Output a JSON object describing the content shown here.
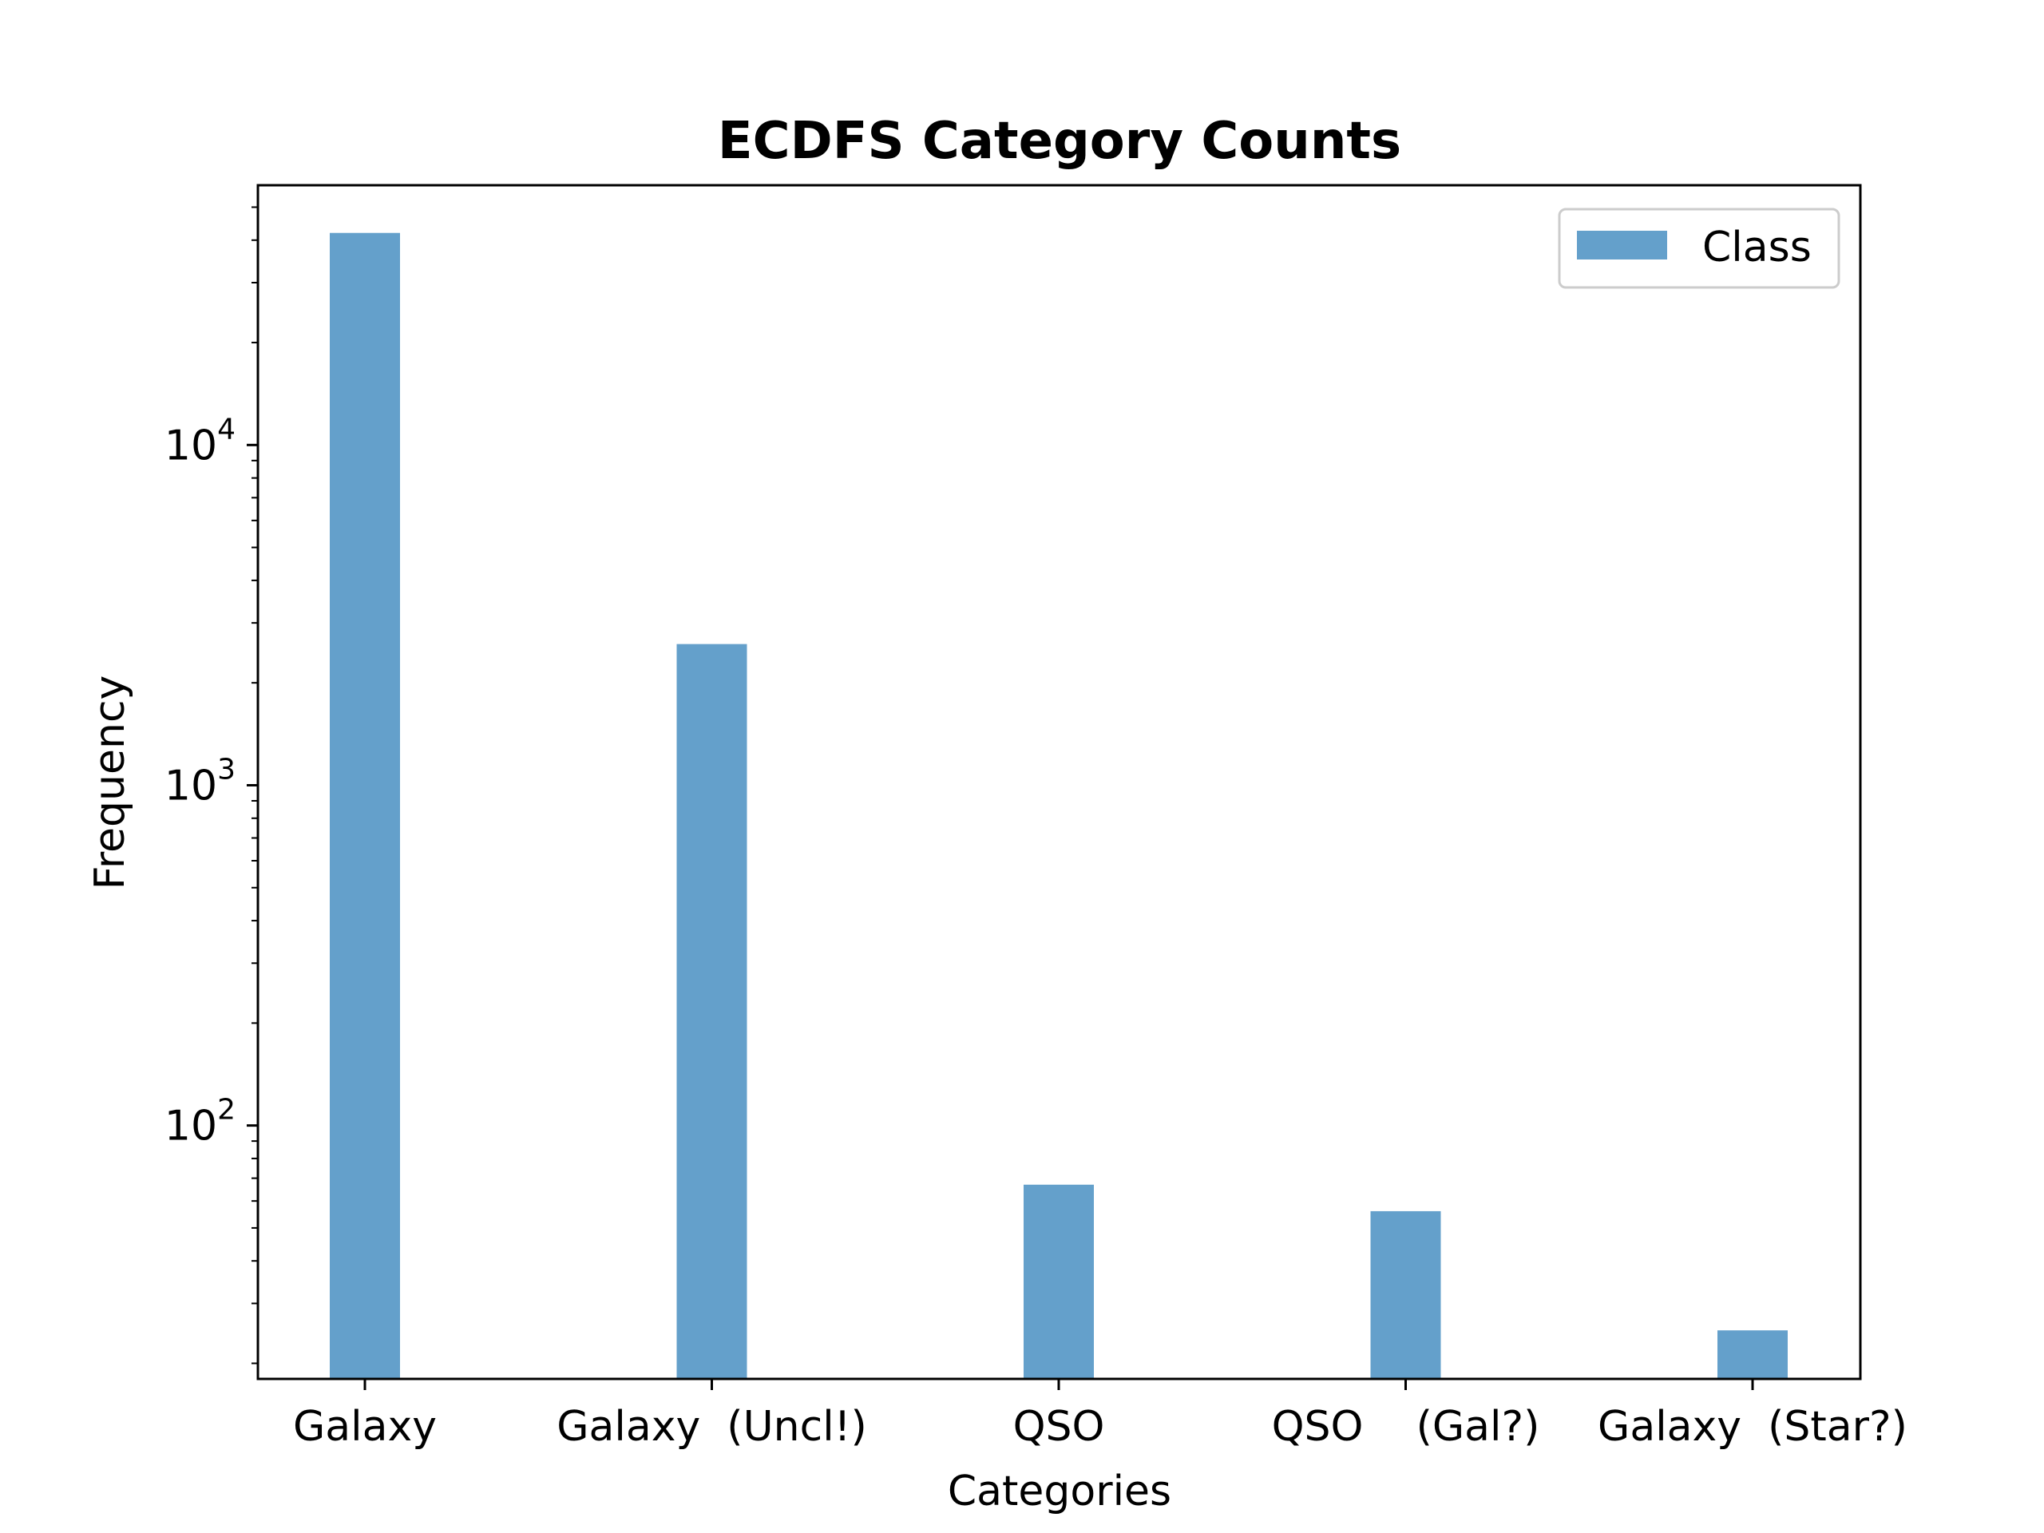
{
  "chart_data": {
    "type": "bar",
    "title": "ECDFS Category Counts",
    "xlabel": "Categories",
    "ylabel": "Frequency",
    "yscale": "log",
    "ylim": [
      18,
      58000
    ],
    "categories": [
      "Galaxy",
      "Galaxy  (Uncl!)",
      "QSO",
      "QSO    (Gal?)",
      "Galaxy  (Star?)"
    ],
    "series": [
      {
        "name": "Class",
        "values": [
          42000,
          2600,
          67,
          56,
          25
        ],
        "color": "#64a0cb"
      }
    ],
    "y_major_ticks": [
      {
        "value": 100,
        "base": "10",
        "exp": "2"
      },
      {
        "value": 1000,
        "base": "10",
        "exp": "3"
      },
      {
        "value": 10000,
        "base": "10",
        "exp": "4"
      }
    ],
    "grid": false,
    "legend_position": "top-right"
  }
}
